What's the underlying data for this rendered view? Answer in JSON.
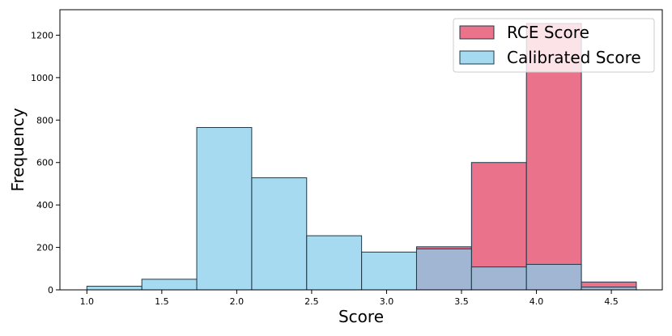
{
  "chart_data": {
    "type": "bar",
    "subtype": "overlapping-histogram",
    "xlabel": "Score",
    "ylabel": "Frequency",
    "xlim": [
      0.82,
      4.84
    ],
    "ylim": [
      0,
      1320
    ],
    "x_ticks": [
      1.0,
      1.5,
      2.0,
      2.5,
      3.0,
      3.5,
      4.0,
      4.5
    ],
    "x_tick_labels": [
      "1.0",
      "1.5",
      "2.0",
      "2.5",
      "3.0",
      "3.5",
      "4.0",
      "4.5"
    ],
    "y_ticks": [
      0,
      200,
      400,
      600,
      800,
      1000,
      1200
    ],
    "y_tick_labels": [
      "0",
      "200",
      "400",
      "600",
      "800",
      "1000",
      "1200"
    ],
    "bin_edges": [
      1.0,
      1.3667,
      1.7333,
      2.1,
      2.4667,
      2.8333,
      3.2,
      3.5667,
      3.9333,
      4.3,
      4.6667
    ],
    "grid": false,
    "legend_position": "top-right",
    "series": [
      {
        "name": "RCE Score",
        "color": "#e8637e",
        "counts": [
          0,
          0,
          0,
          0,
          0,
          0,
          203,
          600,
          1255,
          37
        ]
      },
      {
        "name": "Calibrated Score",
        "color": "#87ceeb",
        "counts": [
          17,
          50,
          765,
          528,
          255,
          178,
          193,
          108,
          120,
          13
        ]
      }
    ]
  }
}
